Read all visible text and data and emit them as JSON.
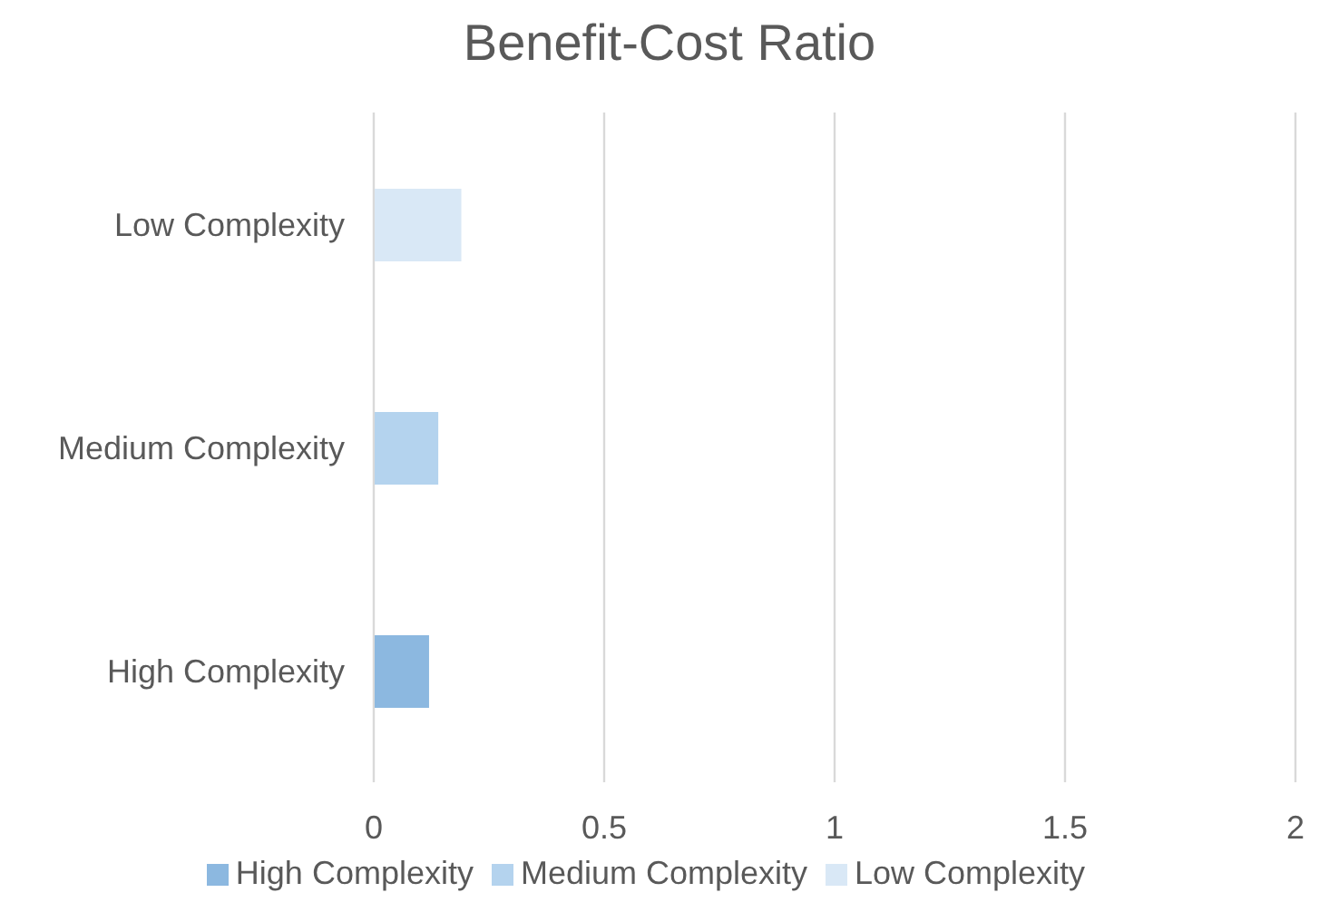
{
  "chart_data": {
    "type": "bar",
    "title": "Benefit-Cost Ratio",
    "orientation": "horizontal",
    "stacked": true,
    "categories": [
      "Low Complexity",
      "Medium Complexity",
      "High Complexity"
    ],
    "series": [
      {
        "name": "High Complexity",
        "color": "#8cb8e0",
        "values": [
          null,
          null,
          0.12
        ]
      },
      {
        "name": "Medium Complexity",
        "color": "#b4d3ee",
        "values": [
          null,
          0.14,
          null
        ]
      },
      {
        "name": "Low Complexity",
        "color": "#d9e8f6",
        "values": [
          0.19,
          null,
          null
        ]
      }
    ],
    "xlim": [
      0,
      2
    ],
    "xticks": [
      0,
      0.5,
      1,
      1.5,
      2
    ],
    "grid": "x",
    "legend": "bottom"
  }
}
